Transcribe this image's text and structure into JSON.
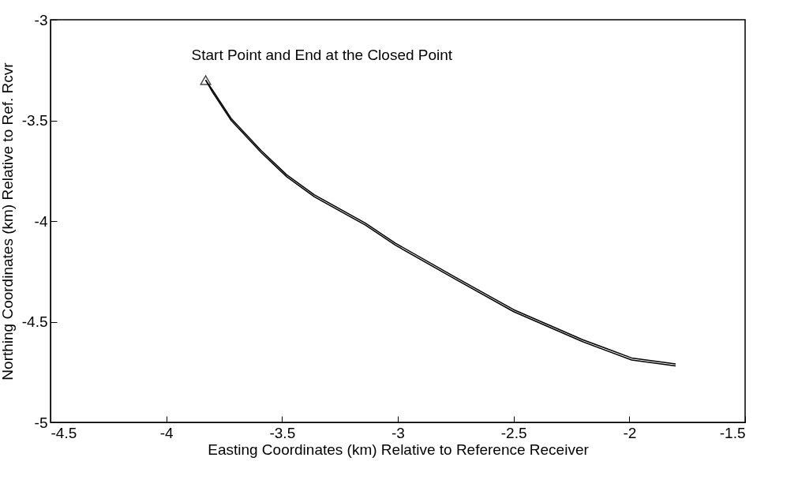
{
  "chart_data": {
    "type": "line",
    "xlabel": "Easting Coordinates (km) Relative to Reference Receiver",
    "ylabel": "Northing Coordinates (km) Relative to Ref. Rcvr",
    "xlim": [
      -4.5,
      -1.5
    ],
    "xticks": [
      -4.5,
      -4,
      -3.5,
      -3,
      -2.5,
      -2,
      -1.5
    ],
    "ylim": [
      -5,
      -3
    ],
    "yticks": [
      -5,
      -4.5,
      -4,
      -3.5,
      -3
    ],
    "grid": false,
    "annotations": [
      {
        "text": "Start Point and End at the Closed Point",
        "x": -3.83,
        "y": -3.3
      }
    ],
    "series": [
      {
        "color": "#000000",
        "line_style": "solid",
        "marker": "none",
        "x": [
          -3.83,
          -3.8,
          -3.72,
          -3.59,
          -3.48,
          -3.36,
          -3.14,
          -3.01,
          -2.75,
          -2.5,
          -2.2,
          -1.99,
          -1.8
        ],
        "values": [
          -3.3,
          -3.36,
          -3.5,
          -3.66,
          -3.78,
          -3.88,
          -4.02,
          -4.12,
          -4.29,
          -4.45,
          -4.6,
          -4.69,
          -4.72
        ]
      },
      {
        "color": "#000000",
        "line_style": "solid",
        "marker": "none",
        "x": [
          -1.8,
          -1.99,
          -2.2,
          -2.5,
          -2.75,
          -3.01,
          -3.14,
          -3.36,
          -3.48,
          -3.59,
          -3.72,
          -3.8,
          -3.83
        ],
        "values": [
          -4.71,
          -4.68,
          -4.59,
          -4.44,
          -4.28,
          -4.11,
          -4.01,
          -3.87,
          -3.77,
          -3.65,
          -3.49,
          -3.35,
          -3.3
        ]
      },
      {
        "type": "scatter",
        "color": "#000000",
        "marker": "triangle",
        "x": [
          -3.83
        ],
        "values": [
          -3.3
        ]
      }
    ]
  }
}
